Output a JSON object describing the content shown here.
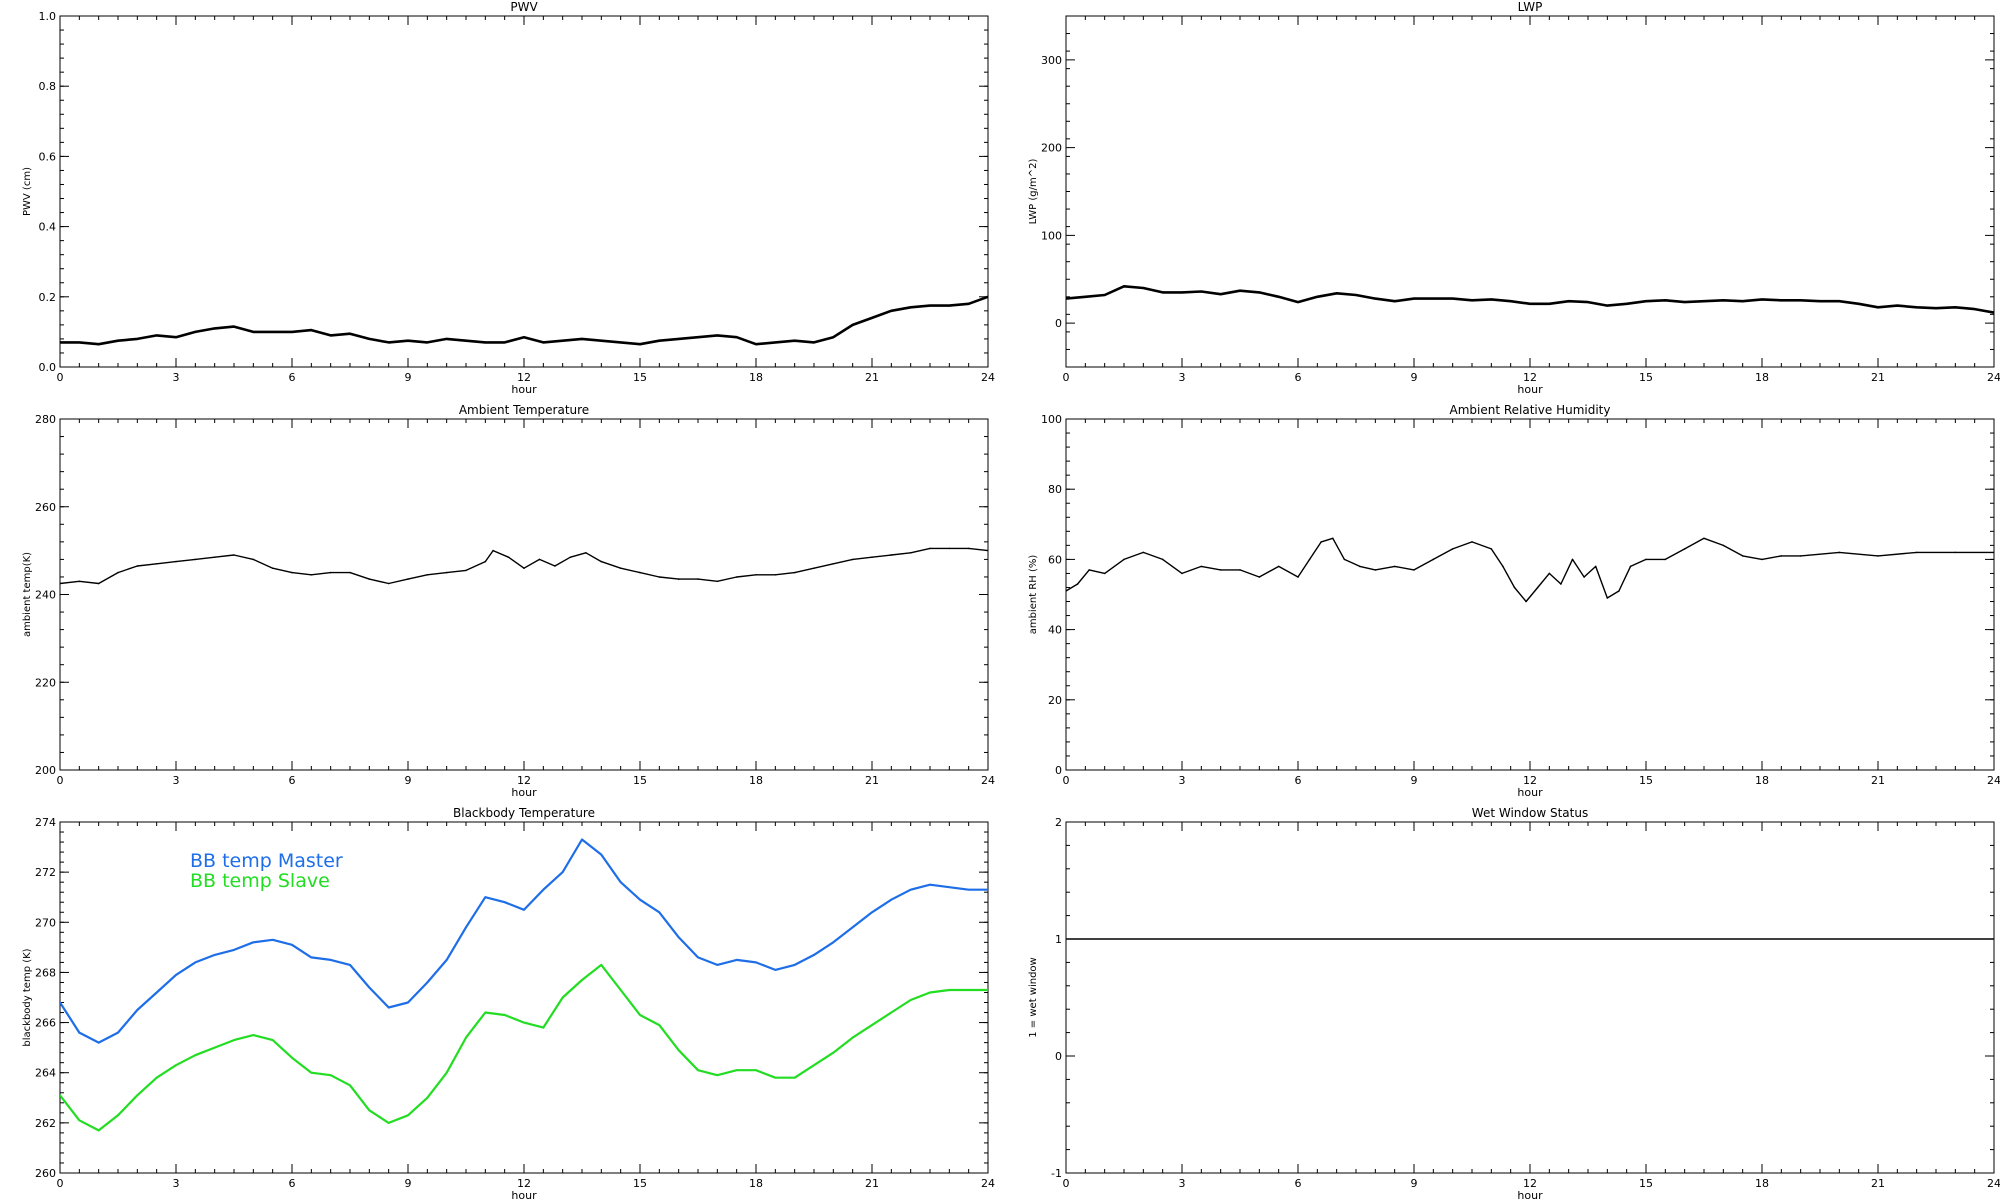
{
  "chart_data": [
    {
      "type": "line",
      "title": "PWV",
      "xlabel": "hour",
      "ylabel": "PWV (cm)",
      "xlim": [
        0,
        24
      ],
      "ylim": [
        0.0,
        1.0
      ],
      "xticks": [
        0,
        3,
        6,
        9,
        12,
        15,
        18,
        21,
        24
      ],
      "yticks": [
        0.0,
        0.2,
        0.4,
        0.6,
        0.8,
        1.0
      ],
      "ytick_labels": [
        "0.0",
        "0.2",
        "0.4",
        "0.6",
        "0.8",
        "1.0"
      ],
      "line_weight": "heavy",
      "series": [
        {
          "color": "#000000",
          "x": [
            0,
            0.5,
            1,
            1.5,
            2,
            2.5,
            3,
            3.5,
            4,
            4.5,
            5,
            5.5,
            6,
            6.5,
            7,
            7.5,
            8,
            8.5,
            9,
            9.5,
            10,
            10.5,
            11,
            11.5,
            12,
            12.5,
            13,
            13.5,
            14,
            14.5,
            15,
            15.5,
            16,
            16.5,
            17,
            17.5,
            18,
            18.5,
            19,
            19.5,
            20,
            20.5,
            21,
            21.5,
            22,
            22.5,
            23,
            23.5,
            24
          ],
          "values": [
            0.07,
            0.07,
            0.065,
            0.075,
            0.08,
            0.09,
            0.085,
            0.1,
            0.11,
            0.115,
            0.1,
            0.1,
            0.1,
            0.105,
            0.09,
            0.095,
            0.08,
            0.07,
            0.075,
            0.07,
            0.08,
            0.075,
            0.07,
            0.07,
            0.085,
            0.07,
            0.075,
            0.08,
            0.075,
            0.07,
            0.065,
            0.075,
            0.08,
            0.085,
            0.09,
            0.085,
            0.065,
            0.07,
            0.075,
            0.07,
            0.085,
            0.12,
            0.14,
            0.16,
            0.17,
            0.175,
            0.175,
            0.18,
            0.2
          ]
        }
      ]
    },
    {
      "type": "line",
      "title": "LWP",
      "xlabel": "hour",
      "ylabel": "LWP (g/m^2)",
      "xlim": [
        0,
        24
      ],
      "ylim": [
        -50,
        350
      ],
      "xticks": [
        0,
        3,
        6,
        9,
        12,
        15,
        18,
        21,
        24
      ],
      "yticks": [
        0,
        100,
        200,
        300
      ],
      "ytick_labels": [
        "0",
        "100",
        "200",
        "300"
      ],
      "line_weight": "heavy",
      "series": [
        {
          "color": "#000000",
          "x": [
            0,
            0.5,
            1,
            1.5,
            2,
            2.5,
            3,
            3.5,
            4,
            4.5,
            5,
            5.5,
            6,
            6.5,
            7,
            7.5,
            8,
            8.5,
            9,
            9.5,
            10,
            10.5,
            11,
            11.5,
            12,
            12.5,
            13,
            13.5,
            14,
            14.5,
            15,
            15.5,
            16,
            16.5,
            17,
            17.5,
            18,
            18.5,
            19,
            19.5,
            20,
            20.5,
            21,
            21.5,
            22,
            22.5,
            23,
            23.5,
            24
          ],
          "values": [
            28,
            30,
            32,
            42,
            40,
            35,
            35,
            36,
            33,
            37,
            35,
            30,
            24,
            30,
            34,
            32,
            28,
            25,
            28,
            28,
            28,
            26,
            27,
            25,
            22,
            22,
            25,
            24,
            20,
            22,
            25,
            26,
            24,
            25,
            26,
            25,
            27,
            26,
            26,
            25,
            25,
            22,
            18,
            20,
            18,
            17,
            18,
            16,
            12
          ]
        }
      ]
    },
    {
      "type": "line",
      "title": "Ambient Temperature",
      "xlabel": "hour",
      "ylabel": "ambient temp(K)",
      "xlim": [
        0,
        24
      ],
      "ylim": [
        200,
        280
      ],
      "xticks": [
        0,
        3,
        6,
        9,
        12,
        15,
        18,
        21,
        24
      ],
      "yticks": [
        200,
        220,
        240,
        260,
        280
      ],
      "ytick_labels": [
        "200",
        "220",
        "240",
        "260",
        "280"
      ],
      "line_weight": "normal",
      "series": [
        {
          "color": "#000000",
          "x": [
            0,
            0.5,
            1,
            1.5,
            2,
            2.5,
            3,
            3.5,
            4,
            4.5,
            5,
            5.5,
            6,
            6.5,
            7,
            7.5,
            8,
            8.5,
            9,
            9.5,
            10,
            10.5,
            11,
            11.2,
            11.6,
            12,
            12.4,
            12.8,
            13.2,
            13.6,
            14,
            14.5,
            15,
            15.5,
            16,
            16.5,
            17,
            17.5,
            18,
            18.5,
            19,
            19.5,
            20,
            20.5,
            21,
            21.5,
            22,
            22.5,
            23,
            23.5,
            24
          ],
          "values": [
            242.5,
            243,
            242.5,
            245,
            246.5,
            247,
            247.5,
            248,
            248.5,
            249,
            248,
            246,
            245,
            244.5,
            245,
            245,
            243.5,
            242.5,
            243.5,
            244.5,
            245,
            245.5,
            247.5,
            250,
            248.5,
            246,
            248,
            246.5,
            248.5,
            249.5,
            247.5,
            246,
            245,
            244,
            243.5,
            243.5,
            243,
            244,
            244.5,
            244.5,
            245,
            246,
            247,
            248,
            248.5,
            249,
            249.5,
            250.5,
            250.5,
            250.5,
            250
          ]
        }
      ]
    },
    {
      "type": "line",
      "title": "Ambient Relative Humidity",
      "xlabel": "hour",
      "ylabel": "ambient RH (%)",
      "xlim": [
        0,
        24
      ],
      "ylim": [
        0,
        100
      ],
      "xticks": [
        0,
        3,
        6,
        9,
        12,
        15,
        18,
        21,
        24
      ],
      "yticks": [
        0,
        20,
        40,
        60,
        80,
        100
      ],
      "ytick_labels": [
        "0",
        "20",
        "40",
        "60",
        "80",
        "100"
      ],
      "line_weight": "normal",
      "series": [
        {
          "color": "#000000",
          "x": [
            0,
            0.3,
            0.6,
            1,
            1.5,
            2,
            2.5,
            3,
            3.5,
            4,
            4.5,
            5,
            5.5,
            6,
            6.3,
            6.6,
            6.9,
            7.2,
            7.6,
            8,
            8.5,
            9,
            9.5,
            10,
            10.5,
            11,
            11.3,
            11.6,
            11.9,
            12.2,
            12.5,
            12.8,
            13.1,
            13.4,
            13.7,
            14,
            14.3,
            14.6,
            15,
            15.5,
            16,
            16.5,
            17,
            17.5,
            18,
            18.5,
            19,
            20,
            21,
            22,
            23,
            24
          ],
          "values": [
            51,
            53,
            57,
            56,
            60,
            62,
            60,
            56,
            58,
            57,
            57,
            55,
            58,
            55,
            60,
            65,
            66,
            60,
            58,
            57,
            58,
            57,
            60,
            63,
            65,
            63,
            58,
            52,
            48,
            52,
            56,
            53,
            60,
            55,
            58,
            49,
            51,
            58,
            60,
            60,
            63,
            66,
            64,
            61,
            60,
            61,
            61,
            62,
            61,
            62,
            62,
            62
          ]
        }
      ]
    },
    {
      "type": "line",
      "title": "Blackbody Temperature",
      "xlabel": "hour",
      "ylabel": "blackbody temp (K)",
      "xlim": [
        0,
        24
      ],
      "ylim": [
        260,
        274
      ],
      "xticks": [
        0,
        3,
        6,
        9,
        12,
        15,
        18,
        21,
        24
      ],
      "yticks": [
        260,
        262,
        264,
        266,
        268,
        270,
        272,
        274
      ],
      "ytick_labels": [
        "260",
        "262",
        "264",
        "266",
        "268",
        "270",
        "272",
        "274"
      ],
      "line_weight": "medium",
      "legend": "top-left",
      "series": [
        {
          "name": "BB temp Master",
          "color": "#1e6ee8",
          "x": [
            0,
            0.5,
            1,
            1.5,
            2,
            2.5,
            3,
            3.5,
            4,
            4.5,
            5,
            5.5,
            6,
            6.5,
            7,
            7.5,
            8,
            8.5,
            9,
            9.5,
            10,
            10.5,
            11,
            11.5,
            12,
            12.5,
            13,
            13.5,
            14,
            14.5,
            15,
            15.5,
            16,
            16.5,
            17,
            17.5,
            18,
            18.5,
            19,
            19.5,
            20,
            20.5,
            21,
            21.5,
            22,
            22.5,
            23,
            23.5,
            24
          ],
          "values": [
            266.8,
            265.6,
            265.2,
            265.6,
            266.5,
            267.2,
            267.9,
            268.4,
            268.7,
            268.9,
            269.2,
            269.3,
            269.1,
            268.6,
            268.5,
            268.3,
            267.4,
            266.6,
            266.8,
            267.6,
            268.5,
            269.8,
            271.0,
            270.8,
            270.5,
            271.3,
            272.0,
            273.3,
            272.7,
            271.6,
            270.9,
            270.4,
            269.4,
            268.6,
            268.3,
            268.5,
            268.4,
            268.1,
            268.3,
            268.7,
            269.2,
            269.8,
            270.4,
            270.9,
            271.3,
            271.5,
            271.4,
            271.3,
            271.3
          ]
        },
        {
          "name": "BB temp Slave",
          "color": "#22dd22",
          "x": [
            0,
            0.5,
            1,
            1.5,
            2,
            2.5,
            3,
            3.5,
            4,
            4.5,
            5,
            5.5,
            6,
            6.5,
            7,
            7.5,
            8,
            8.5,
            9,
            9.5,
            10,
            10.5,
            11,
            11.5,
            12,
            12.5,
            13,
            13.5,
            14,
            14.5,
            15,
            15.5,
            16,
            16.5,
            17,
            17.5,
            18,
            18.5,
            19,
            19.5,
            20,
            20.5,
            21,
            21.5,
            22,
            22.5,
            23,
            23.5,
            24
          ],
          "values": [
            263.1,
            262.1,
            261.7,
            262.3,
            263.1,
            263.8,
            264.3,
            264.7,
            265.0,
            265.3,
            265.5,
            265.3,
            264.6,
            264.0,
            263.9,
            263.5,
            262.5,
            262.0,
            262.3,
            263.0,
            264.0,
            265.4,
            266.4,
            266.3,
            266.0,
            265.8,
            267.0,
            267.7,
            268.3,
            267.3,
            266.3,
            265.9,
            264.9,
            264.1,
            263.9,
            264.1,
            264.1,
            263.8,
            263.8,
            264.3,
            264.8,
            265.4,
            265.9,
            266.4,
            266.9,
            267.2,
            267.3,
            267.3,
            267.3
          ]
        }
      ]
    },
    {
      "type": "line",
      "title": "Wet Window Status",
      "xlabel": "hour",
      "ylabel": "1 = wet window",
      "xlim": [
        0,
        24
      ],
      "ylim": [
        -1,
        2
      ],
      "xticks": [
        0,
        3,
        6,
        9,
        12,
        15,
        18,
        21,
        24
      ],
      "yticks": [
        -1,
        0,
        1,
        2
      ],
      "ytick_labels": [
        "-1",
        "0",
        "1",
        "2"
      ],
      "line_weight": "normal",
      "series": [
        {
          "color": "#000000",
          "x": [
            0,
            24
          ],
          "values": [
            1,
            1
          ]
        }
      ]
    }
  ]
}
